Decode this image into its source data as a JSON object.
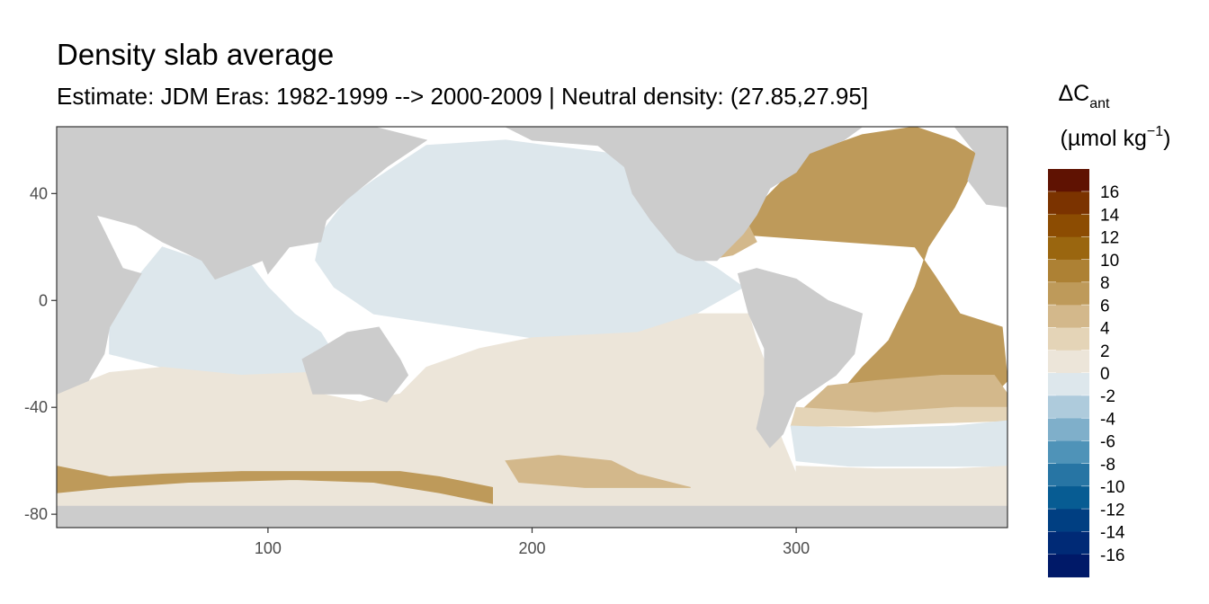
{
  "chart_data": {
    "type": "heatmap",
    "title": "Density slab average",
    "subtitle": "Estimate: JDM Eras: 1982-1999 --> 2000-2009 | Neutral density: (27.85,27.95]",
    "xlabel": "",
    "ylabel": "",
    "xlim": [
      20,
      380
    ],
    "ylim": [
      -85,
      65
    ],
    "x_ticks": [
      100,
      200,
      300
    ],
    "y_ticks": [
      40,
      0,
      -40,
      -80
    ],
    "grid": false,
    "land_color": "#cccccc",
    "missing_color": "#ffffff",
    "legend": {
      "title_main": "ΔC",
      "title_sub": "ant",
      "title_unit_pre": "(µmol kg",
      "title_unit_sup": "−1",
      "title_unit_post": ")",
      "placement": "right",
      "bins": [
        {
          "label": "16",
          "color": "#5f1202"
        },
        {
          "label": "14",
          "color": "#7b3300"
        },
        {
          "label": "12",
          "color": "#8c4c02"
        },
        {
          "label": "10",
          "color": "#9a660f"
        },
        {
          "label": "8",
          "color": "#ad8134"
        },
        {
          "label": "6",
          "color": "#be9a5a"
        },
        {
          "label": "4",
          "color": "#d3b88b"
        },
        {
          "label": "2",
          "color": "#e4d4b7"
        },
        {
          "label": "0",
          "color": "#ece5d9"
        },
        {
          "label": "-2",
          "color": "#dde7ec"
        },
        {
          "label": "-4",
          "color": "#aecbdc"
        },
        {
          "label": "-6",
          "color": "#7fafca"
        },
        {
          "label": "-8",
          "color": "#4f93b8"
        },
        {
          "label": "-10",
          "color": "#2775a4"
        },
        {
          "label": "-12",
          "color": "#075c93"
        },
        {
          "label": "-14",
          "color": "#003f82"
        },
        {
          "label": "-16",
          "color": "#002a76"
        },
        {
          "label": "",
          "color": "#001968"
        }
      ]
    },
    "regions": [
      {
        "name": "north-pacific",
        "value": -1,
        "color": "#dde7ec",
        "polygon": [
          [
            120,
            25
          ],
          [
            130,
            38
          ],
          [
            140,
            45
          ],
          [
            160,
            58
          ],
          [
            190,
            60
          ],
          [
            205,
            58
          ],
          [
            230,
            55
          ],
          [
            245,
            50
          ],
          [
            248,
            35
          ],
          [
            255,
            20
          ],
          [
            270,
            12
          ],
          [
            280,
            5
          ],
          [
            262,
            -5
          ],
          [
            240,
            -12
          ],
          [
            200,
            -14
          ],
          [
            160,
            -8
          ],
          [
            140,
            -5
          ],
          [
            125,
            5
          ],
          [
            118,
            15
          ]
        ]
      },
      {
        "name": "indian-ocean",
        "value": -1,
        "color": "#dde7ec",
        "polygon": [
          [
            40,
            -5
          ],
          [
            50,
            8
          ],
          [
            60,
            20
          ],
          [
            75,
            15
          ],
          [
            80,
            8
          ],
          [
            90,
            18
          ],
          [
            100,
            5
          ],
          [
            110,
            -5
          ],
          [
            120,
            -12
          ],
          [
            125,
            -20
          ],
          [
            115,
            -27
          ],
          [
            90,
            -28
          ],
          [
            60,
            -25
          ],
          [
            40,
            -20
          ]
        ]
      },
      {
        "name": "south-ocean-band",
        "value": 1,
        "color": "#ece5d9",
        "polygon": [
          [
            20,
            -35
          ],
          [
            40,
            -27
          ],
          [
            60,
            -25
          ],
          [
            90,
            -28
          ],
          [
            115,
            -27
          ],
          [
            120,
            -35
          ],
          [
            135,
            -38
          ],
          [
            150,
            -35
          ],
          [
            160,
            -25
          ],
          [
            180,
            -18
          ],
          [
            200,
            -14
          ],
          [
            240,
            -12
          ],
          [
            262,
            -5
          ],
          [
            282,
            -5
          ],
          [
            285,
            -15
          ],
          [
            290,
            -28
          ],
          [
            290,
            -40
          ],
          [
            295,
            -53
          ],
          [
            300,
            -65
          ],
          [
            300,
            -77
          ],
          [
            20,
            -77
          ]
        ]
      },
      {
        "name": "antarctic-coastal-band",
        "value": 6,
        "color": "#be9a5a",
        "polygon": [
          [
            20,
            -62
          ],
          [
            40,
            -66
          ],
          [
            60,
            -65
          ],
          [
            90,
            -64
          ],
          [
            120,
            -64
          ],
          [
            150,
            -64
          ],
          [
            165,
            -66
          ],
          [
            185,
            -70
          ],
          [
            185,
            -76
          ],
          [
            165,
            -72
          ],
          [
            140,
            -68
          ],
          [
            110,
            -67
          ],
          [
            70,
            -68
          ],
          [
            40,
            -70
          ],
          [
            20,
            -72
          ]
        ]
      },
      {
        "name": "ross-sea-patch",
        "value": 3,
        "color": "#d3b88b",
        "polygon": [
          [
            190,
            -60
          ],
          [
            210,
            -58
          ],
          [
            230,
            -60
          ],
          [
            240,
            -65
          ],
          [
            260,
            -70
          ],
          [
            220,
            -70
          ],
          [
            195,
            -68
          ]
        ]
      },
      {
        "name": "north-atlantic",
        "value": 6,
        "color": "#be9a5a",
        "polygon": [
          [
            275,
            25
          ],
          [
            285,
            35
          ],
          [
            295,
            45
          ],
          [
            305,
            55
          ],
          [
            325,
            62
          ],
          [
            345,
            65
          ],
          [
            360,
            60
          ],
          [
            368,
            55
          ],
          [
            365,
            45
          ],
          [
            360,
            35
          ],
          [
            350,
            20
          ],
          [
            345,
            5
          ],
          [
            340,
            -5
          ],
          [
            335,
            -15
          ],
          [
            325,
            -25
          ],
          [
            312,
            -40
          ],
          [
            330,
            -42
          ],
          [
            355,
            -38
          ],
          [
            375,
            -35
          ],
          [
            380,
            -30
          ],
          [
            378,
            -10
          ],
          [
            362,
            -5
          ],
          [
            352,
            10
          ],
          [
            345,
            20
          ]
        ]
      },
      {
        "name": "south-atlantic-mid",
        "value": 3,
        "color": "#d3b88b",
        "polygon": [
          [
            312,
            -32
          ],
          [
            330,
            -30
          ],
          [
            355,
            -28
          ],
          [
            375,
            -28
          ],
          [
            380,
            -35
          ],
          [
            380,
            -40
          ],
          [
            360,
            -40
          ],
          [
            330,
            -42
          ],
          [
            300,
            -43
          ]
        ]
      },
      {
        "name": "south-atlantic-light",
        "value": 1,
        "color": "#e4d4b7",
        "polygon": [
          [
            300,
            -40
          ],
          [
            330,
            -42
          ],
          [
            360,
            -40
          ],
          [
            380,
            -40
          ],
          [
            380,
            -45
          ],
          [
            350,
            -46
          ],
          [
            320,
            -47
          ],
          [
            298,
            -47
          ]
        ]
      },
      {
        "name": "south-atlantic-blue",
        "value": -2,
        "color": "#dde7ec",
        "polygon": [
          [
            298,
            -47
          ],
          [
            330,
            -48
          ],
          [
            360,
            -47
          ],
          [
            380,
            -45
          ],
          [
            380,
            -62
          ],
          [
            350,
            -62
          ],
          [
            320,
            -62
          ],
          [
            300,
            -60
          ]
        ]
      },
      {
        "name": "weddell-sea",
        "value": 1,
        "color": "#ece5d9",
        "polygon": [
          [
            300,
            -62
          ],
          [
            330,
            -63
          ],
          [
            360,
            -63
          ],
          [
            380,
            -62
          ],
          [
            380,
            -77
          ],
          [
            300,
            -77
          ]
        ]
      },
      {
        "name": "gulf-of-mexico",
        "value": 4,
        "color": "#d3b88b",
        "polygon": [
          [
            262,
            20
          ],
          [
            275,
            28
          ],
          [
            282,
            28
          ],
          [
            285,
            22
          ],
          [
            276,
            17
          ],
          [
            265,
            15
          ]
        ]
      }
    ],
    "land": [
      {
        "name": "africa",
        "polygon": [
          [
            20,
            35
          ],
          [
            35,
            32
          ],
          [
            45,
            12
          ],
          [
            52,
            10
          ],
          [
            40,
            -10
          ],
          [
            38,
            -20
          ],
          [
            32,
            -30
          ],
          [
            20,
            -35
          ]
        ]
      },
      {
        "name": "eurasia",
        "polygon": [
          [
            20,
            65
          ],
          [
            80,
            65
          ],
          [
            140,
            65
          ],
          [
            160,
            60
          ],
          [
            145,
            50
          ],
          [
            130,
            38
          ],
          [
            122,
            30
          ],
          [
            120,
            22
          ],
          [
            108,
            20
          ],
          [
            100,
            10
          ],
          [
            98,
            15
          ],
          [
            80,
            8
          ],
          [
            75,
            15
          ],
          [
            60,
            22
          ],
          [
            50,
            28
          ],
          [
            35,
            32
          ],
          [
            20,
            35
          ]
        ]
      },
      {
        "name": "australia",
        "polygon": [
          [
            113,
            -22
          ],
          [
            120,
            -18
          ],
          [
            130,
            -12
          ],
          [
            142,
            -10
          ],
          [
            150,
            -22
          ],
          [
            153,
            -28
          ],
          [
            145,
            -38
          ],
          [
            135,
            -35
          ],
          [
            117,
            -35
          ]
        ]
      },
      {
        "name": "north-america",
        "polygon": [
          [
            190,
            65
          ],
          [
            200,
            60
          ],
          [
            225,
            58
          ],
          [
            235,
            50
          ],
          [
            238,
            40
          ],
          [
            245,
            30
          ],
          [
            255,
            18
          ],
          [
            262,
            15
          ],
          [
            270,
            15
          ],
          [
            280,
            25
          ],
          [
            285,
            32
          ],
          [
            290,
            42
          ],
          [
            300,
            48
          ],
          [
            305,
            55
          ],
          [
            318,
            60
          ],
          [
            325,
            65
          ]
        ]
      },
      {
        "name": "south-america",
        "polygon": [
          [
            278,
            10
          ],
          [
            285,
            12
          ],
          [
            300,
            8
          ],
          [
            312,
            0
          ],
          [
            325,
            -5
          ],
          [
            322,
            -20
          ],
          [
            315,
            -28
          ],
          [
            300,
            -38
          ],
          [
            295,
            -50
          ],
          [
            290,
            -55
          ],
          [
            285,
            -48
          ],
          [
            288,
            -35
          ],
          [
            288,
            -18
          ],
          [
            282,
            -5
          ]
        ]
      },
      {
        "name": "antarctica",
        "polygon": [
          [
            20,
            -77
          ],
          [
            380,
            -77
          ],
          [
            380,
            -85
          ],
          [
            20,
            -85
          ]
        ]
      },
      {
        "name": "europe-east-atlantic",
        "polygon": [
          [
            360,
            65
          ],
          [
            380,
            65
          ],
          [
            380,
            35
          ],
          [
            372,
            36
          ],
          [
            365,
            45
          ],
          [
            368,
            55
          ]
        ]
      }
    ]
  }
}
